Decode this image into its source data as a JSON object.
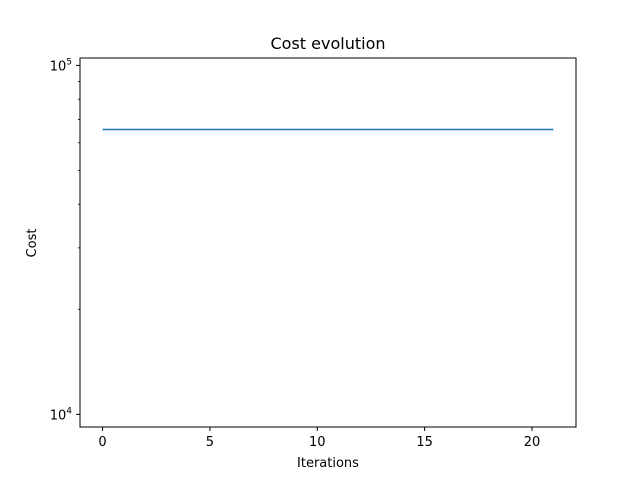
{
  "chart_data": {
    "type": "line",
    "title": "Cost evolution",
    "xlabel": "Iterations",
    "ylabel": "Cost",
    "xlim": [
      -1.05,
      22.05
    ],
    "ylim": [
      9200,
      105000
    ],
    "yscale": "log",
    "grid": false,
    "x_ticks": [
      0,
      5,
      10,
      15,
      20
    ],
    "x_tick_labels": [
      "0",
      "5",
      "10",
      "15",
      "20"
    ],
    "y_ticks": [
      10000,
      100000
    ],
    "y_tick_labels": [
      {
        "base": "10",
        "exp": "4"
      },
      {
        "base": "10",
        "exp": "5"
      }
    ],
    "series": [
      {
        "color": "#1f77b4",
        "x": [
          0,
          1,
          2,
          3,
          4,
          5,
          6,
          7,
          8,
          9,
          10,
          11,
          12,
          13,
          14,
          15,
          16,
          17,
          18,
          19,
          20,
          21
        ],
        "y": [
          65500,
          65500,
          65500,
          65500,
          65500,
          65500,
          65500,
          65500,
          65500,
          65500,
          65500,
          65500,
          65500,
          65500,
          65500,
          65500,
          65500,
          65500,
          65500,
          65500,
          65500,
          65500
        ]
      }
    ]
  }
}
